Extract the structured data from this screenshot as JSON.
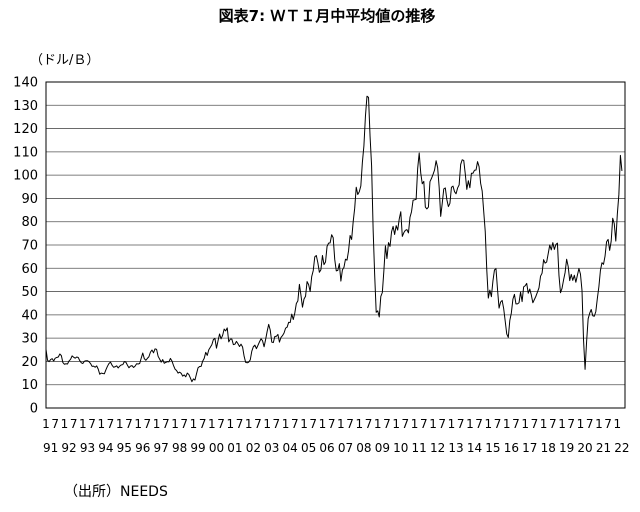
{
  "chart_data": {
    "type": "line",
    "title": "図表7: ＷＴＩ月中平均値の推移",
    "ylabel": "（ドル/Ｂ）",
    "ylim": [
      0,
      140
    ],
    "yticks": [
      0,
      10,
      20,
      30,
      40,
      50,
      60,
      70,
      80,
      90,
      100,
      110,
      120,
      130,
      140
    ],
    "xlim": [
      {
        "year": 1991,
        "month": 1
      },
      {
        "year": 2022,
        "month": 6
      }
    ],
    "x_month_ticks": [
      "1",
      "7"
    ],
    "x_year_ticks": [
      "91",
      "92",
      "93",
      "94",
      "95",
      "96",
      "97",
      "98",
      "99",
      "00",
      "01",
      "02",
      "03",
      "04",
      "05",
      "06",
      "07",
      "08",
      "09",
      "10",
      "11",
      "12",
      "13",
      "14",
      "15",
      "16",
      "17",
      "18",
      "19",
      "20",
      "21",
      "22"
    ],
    "grid": true,
    "legend": false,
    "line_color": "#000000",
    "grid_color": "#555555",
    "series": [
      {
        "data": [
          {
            "year": 1991,
            "values": [
              25.2,
              20.5,
              19.9,
              20.8,
              21.2,
              20.2,
              21.4,
              21.7,
              21.9,
              23.2,
              22.5,
              19.5
            ]
          },
          {
            "year": 1992,
            "values": [
              18.8,
              19.0,
              18.9,
              20.2,
              20.9,
              22.4,
              21.8,
              21.4,
              21.9,
              21.7,
              20.3,
              19.4
            ]
          },
          {
            "year": 1993,
            "values": [
              19.1,
              20.1,
              20.3,
              20.3,
              19.9,
              19.1,
              17.9,
              18.0,
              17.5,
              18.1,
              16.7,
              14.5
            ]
          },
          {
            "year": 1994,
            "values": [
              15.0,
              14.8,
              14.7,
              16.4,
              17.9,
              19.1,
              19.7,
              18.4,
              17.5,
              17.7,
              18.1,
              17.2
            ]
          },
          {
            "year": 1995,
            "values": [
              18.0,
              18.5,
              18.6,
              19.9,
              19.7,
              18.4,
              17.3,
              18.0,
              18.2,
              17.4,
              18.0,
              19.0
            ]
          },
          {
            "year": 1996,
            "values": [
              18.9,
              19.1,
              21.4,
              23.6,
              21.2,
              20.5,
              21.3,
              22.0,
              24.0,
              24.9,
              23.7,
              25.4
            ]
          },
          {
            "year": 1997,
            "values": [
              25.2,
              22.2,
              21.0,
              19.7,
              20.8,
              19.2,
              19.6,
              19.9,
              19.8,
              21.3,
              20.2,
              18.3
            ]
          },
          {
            "year": 1998,
            "values": [
              16.7,
              16.1,
              15.0,
              15.4,
              14.9,
              13.7,
              14.2,
              13.4,
              15.0,
              14.4,
              12.9,
              11.3
            ]
          },
          {
            "year": 1999,
            "values": [
              12.5,
              12.0,
              14.7,
              17.3,
              17.8,
              17.9,
              20.1,
              21.3,
              23.9,
              22.6,
              25.0,
              26.1
            ]
          },
          {
            "year": 2000,
            "values": [
              27.2,
              29.4,
              29.9,
              25.7,
              28.8,
              31.8,
              29.7,
              31.2,
              33.9,
              33.1,
              34.4,
              28.4
            ]
          },
          {
            "year": 2001,
            "values": [
              29.6,
              29.6,
              27.2,
              27.4,
              28.6,
              27.6,
              26.4,
              27.4,
              26.2,
              22.2,
              19.6,
              19.4
            ]
          },
          {
            "year": 2002,
            "values": [
              19.7,
              20.7,
              24.4,
              26.3,
              27.0,
              25.5,
              26.9,
              28.4,
              29.7,
              28.9,
              26.3,
              29.4
            ]
          },
          {
            "year": 2003,
            "values": [
              32.9,
              35.9,
              33.5,
              28.3,
              28.1,
              30.7,
              30.8,
              31.6,
              28.3,
              30.3,
              31.1,
              32.2
            ]
          },
          {
            "year": 2004,
            "values": [
              34.3,
              34.7,
              36.8,
              36.7,
              40.3,
              38.0,
              40.8,
              44.9,
              46.0,
              53.1,
              48.5,
              43.3
            ]
          },
          {
            "year": 2005,
            "values": [
              46.8,
              48.0,
              54.3,
              53.0,
              50.0,
              56.4,
              59.0,
              64.9,
              65.5,
              62.4,
              58.3,
              59.4
            ]
          },
          {
            "year": 2006,
            "values": [
              65.5,
              61.6,
              62.7,
              69.4,
              70.8,
              70.9,
              74.4,
              73.1,
              63.8,
              58.9,
              59.1,
              62.0
            ]
          },
          {
            "year": 2007,
            "values": [
              54.5,
              59.3,
              60.4,
              63.9,
              63.5,
              67.5,
              74.1,
              72.4,
              79.9,
              85.8,
              94.8,
              91.7
            ]
          },
          {
            "year": 2008,
            "values": [
              92.9,
              95.4,
              105.5,
              112.6,
              125.4,
              133.9,
              133.4,
              116.7,
              104.1,
              76.6,
              57.3,
              41.1
            ]
          },
          {
            "year": 2009,
            "values": [
              41.7,
              39.1,
              47.9,
              49.6,
              59.0,
              69.6,
              64.2,
              71.0,
              69.4,
              75.7,
              78.0,
              74.5
            ]
          },
          {
            "year": 2010,
            "values": [
              78.3,
              76.4,
              81.2,
              84.3,
              73.7,
              75.3,
              76.3,
              76.6,
              75.2,
              81.9,
              84.3,
              89.2
            ]
          },
          {
            "year": 2011,
            "values": [
              89.4,
              89.6,
              102.9,
              109.5,
              100.9,
              96.3,
              97.3,
              86.3,
              85.5,
              86.3,
              97.2,
              98.6
            ]
          },
          {
            "year": 2012,
            "values": [
              100.3,
              102.2,
              106.2,
              103.3,
              94.7,
              82.3,
              87.9,
              94.1,
              94.5,
              89.5,
              86.5,
              87.9
            ]
          },
          {
            "year": 2013,
            "values": [
              94.8,
              95.3,
              92.9,
              92.0,
              94.5,
              95.8,
              104.6,
              106.6,
              106.3,
              100.5,
              93.9,
              97.6
            ]
          },
          {
            "year": 2014,
            "values": [
              94.6,
              100.8,
              100.8,
              102.1,
              102.2,
              105.8,
              103.6,
              96.5,
              93.2,
              84.4,
              75.8,
              59.3
            ]
          },
          {
            "year": 2015,
            "values": [
              47.2,
              50.6,
              47.8,
              54.5,
              59.3,
              59.8,
              50.9,
              42.9,
              45.5,
              46.2,
              42.7,
              37.3
            ]
          },
          {
            "year": 2016,
            "values": [
              31.8,
              30.3,
              37.6,
              40.8,
              46.7,
              48.8,
              44.7,
              44.7,
              45.2,
              49.8,
              45.7,
              52.0
            ]
          },
          {
            "year": 2017,
            "values": [
              52.5,
              53.5,
              49.3,
              51.1,
              48.5,
              45.2,
              46.6,
              48.0,
              49.8,
              51.6,
              56.6,
              57.9
            ]
          },
          {
            "year": 2018,
            "values": [
              63.7,
              62.2,
              62.7,
              66.3,
              70.0,
              67.9,
              71.0,
              68.1,
              70.2,
              70.8,
              57.0,
              49.5
            ]
          },
          {
            "year": 2019,
            "values": [
              51.4,
              55.0,
              58.2,
              63.9,
              60.8,
              54.7,
              57.4,
              54.8,
              57.0,
              54.0,
              57.0,
              59.9
            ]
          },
          {
            "year": 2020,
            "values": [
              57.5,
              50.5,
              29.2,
              16.6,
              28.5,
              38.3,
              40.7,
              42.3,
              39.6,
              39.4,
              41.4,
              47.1
            ]
          },
          {
            "year": 2021,
            "values": [
              52.1,
              59.1,
              62.4,
              61.7,
              65.2,
              71.4,
              72.4,
              67.7,
              71.6,
              81.5,
              79.2,
              71.7
            ]
          },
          {
            "year": 2022,
            "values": [
              83.2,
              91.6,
              108.5,
              101.8
            ]
          }
        ]
      }
    ]
  },
  "source": "（出所）NEEDS"
}
